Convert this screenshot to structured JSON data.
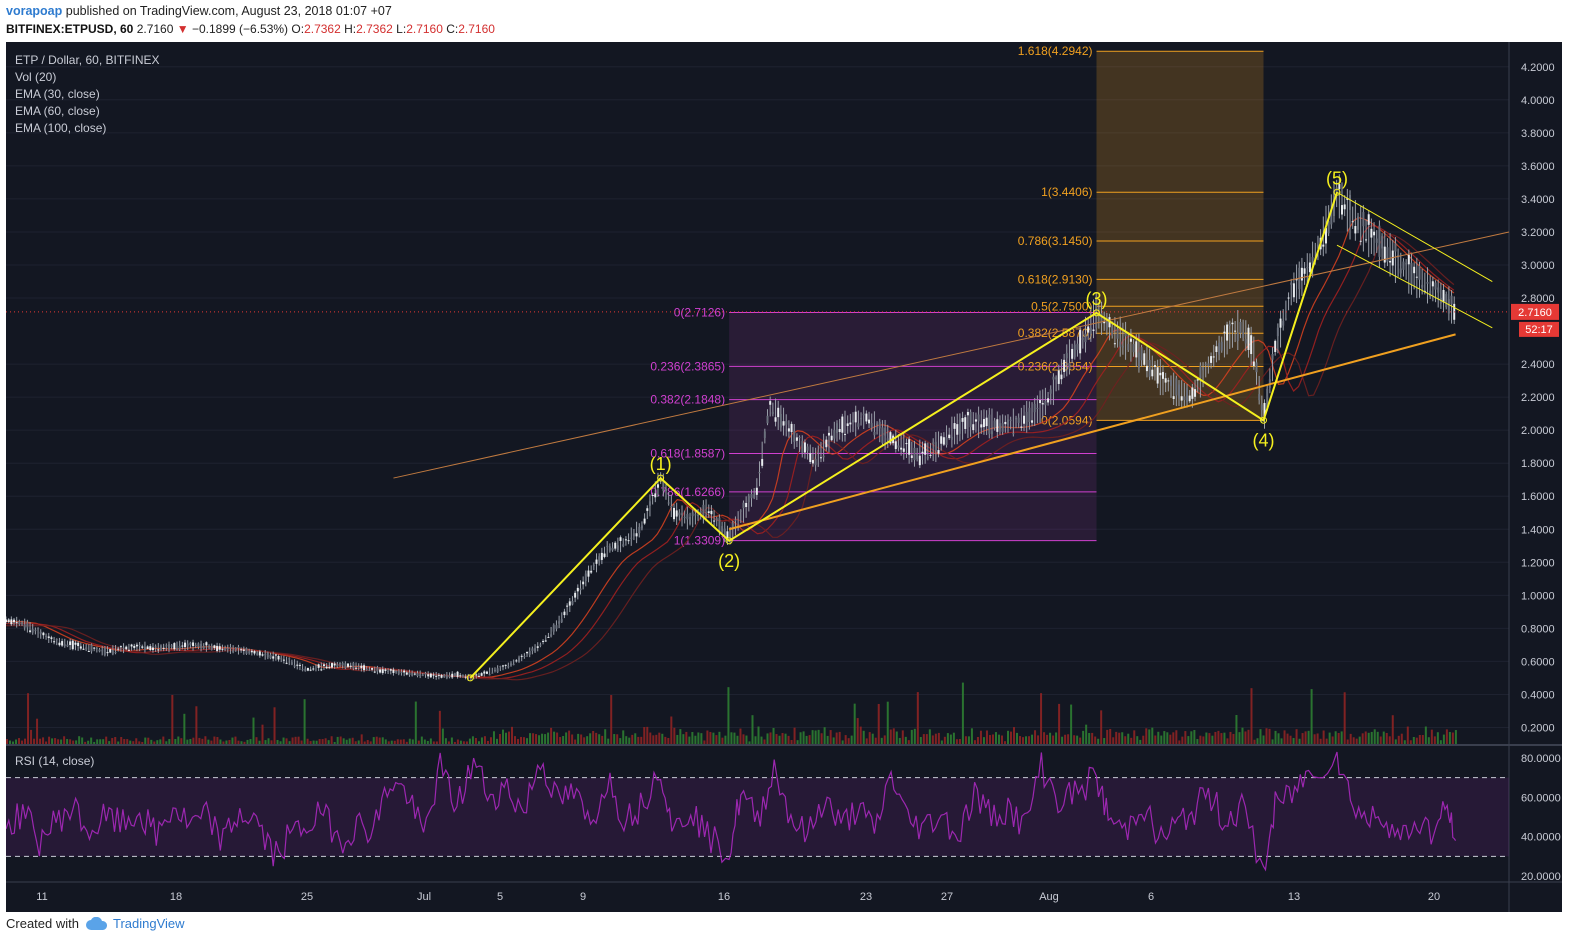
{
  "header": {
    "author": "vorapoap",
    "published_text": "published on TradingView.com, August 23, 2018 01:07 +07",
    "symbol": "BITFINEX:ETPUSD, 60",
    "last": "2.7160",
    "change": "−0.1899 (−6.53%)",
    "o_label": "O:",
    "o": "2.7362",
    "h_label": "H:",
    "h": "2.7362",
    "l_label": "L:",
    "l": "2.7160",
    "c_label": "C:",
    "c": "2.7160"
  },
  "legend": {
    "title": "ETP / Dollar, 60, BITFINEX",
    "vol": "Vol (20)",
    "ema30": "EMA (30, close)",
    "ema60": "EMA (60, close)",
    "ema100": "EMA (100, close)",
    "rsi": "RSI (14, close)"
  },
  "price_tag": "2.7160",
  "countdown": "52:17",
  "footer": {
    "created_with": "Created with",
    "brand": "TradingView"
  },
  "colors": {
    "background": "#131722",
    "wave_lines": "#f5f01e",
    "trendline": "#f0a020",
    "fib_orange": "#f0a020",
    "fib_magenta": "#d040d0",
    "rsi_line": "#9c27b0",
    "price_tag": "#e53935"
  },
  "chart_data": {
    "type": "line",
    "x_ticks": [
      "11",
      "18",
      "25",
      "Jul",
      "5",
      "9",
      "16",
      "23",
      "27",
      "Aug",
      "6",
      "13",
      "20"
    ],
    "price_axis": {
      "ticks": [
        "4.2000",
        "4.0000",
        "3.8000",
        "3.6000",
        "3.4000",
        "3.2000",
        "3.0000",
        "2.8000",
        "2.4000",
        "2.2000",
        "2.0000",
        "1.8000",
        "1.6000",
        "1.4000",
        "1.2000",
        "1.0000",
        "0.8000",
        "0.6000",
        "0.4000",
        "0.2000"
      ],
      "ylim": [
        0.1,
        4.35
      ]
    },
    "rsi_axis": {
      "ticks": [
        "80.0000",
        "60.0000",
        "40.0000",
        "20.0000"
      ],
      "ylim": [
        18,
        84
      ],
      "bands": [
        70,
        30
      ]
    },
    "wave_points": [
      {
        "label": "",
        "x": 27.8,
        "y": 0.5
      },
      {
        "label": "(1)",
        "x": 39.2,
        "y": 1.71
      },
      {
        "label": "(2)",
        "x": 43.3,
        "y": 1.33
      },
      {
        "label": "(3)",
        "x": 65.3,
        "y": 2.71
      },
      {
        "label": "(4)",
        "x": 75.3,
        "y": 2.06
      },
      {
        "label": "(5)",
        "x": 79.7,
        "y": 3.44
      }
    ],
    "fib_retracement_magenta": {
      "x_range": [
        43.3,
        65.3
      ],
      "levels": [
        {
          "label": "0(2.7126)",
          "value": 2.7126
        },
        {
          "label": "0.236(2.3865)",
          "value": 2.3865
        },
        {
          "label": "0.382(2.1848)",
          "value": 2.1848
        },
        {
          "label": "0.618(1.8587)",
          "value": 1.8587
        },
        {
          "label": "0.786(1.6266)",
          "value": 1.6266
        },
        {
          "label": "1(1.3309)",
          "value": 1.3309
        }
      ]
    },
    "fib_extension_orange": {
      "x_range": [
        65.3,
        75.3
      ],
      "levels": [
        {
          "label": "1.618(4.2942)",
          "value": 4.2942
        },
        {
          "label": "1(3.4406)",
          "value": 3.4406
        },
        {
          "label": "0.786(3.1450)",
          "value": 3.145
        },
        {
          "label": "0.618(2.9130)",
          "value": 2.913
        },
        {
          "label": "0.5(2.7500)",
          "value": 2.75
        },
        {
          "label": "0.382(2.5870)",
          "value": 2.587
        },
        {
          "label": "0.236(2.3854)",
          "value": 2.3854
        },
        {
          "label": "0(2.0594)",
          "value": 2.0594
        }
      ]
    },
    "price_series": [
      [
        0,
        0.85
      ],
      [
        1,
        0.83
      ],
      [
        2,
        0.77
      ],
      [
        3,
        0.72
      ],
      [
        4,
        0.7
      ],
      [
        5,
        0.68
      ],
      [
        6,
        0.66
      ],
      [
        7,
        0.68
      ],
      [
        8,
        0.69
      ],
      [
        9,
        0.68
      ],
      [
        10,
        0.69
      ],
      [
        11,
        0.7
      ],
      [
        12,
        0.69
      ],
      [
        13,
        0.68
      ],
      [
        14,
        0.67
      ],
      [
        15,
        0.65
      ],
      [
        16,
        0.63
      ],
      [
        17,
        0.6
      ],
      [
        18,
        0.55
      ],
      [
        19,
        0.57
      ],
      [
        20,
        0.58
      ],
      [
        21,
        0.57
      ],
      [
        22,
        0.55
      ],
      [
        23,
        0.54
      ],
      [
        24,
        0.53
      ],
      [
        25,
        0.52
      ],
      [
        26,
        0.51
      ],
      [
        27,
        0.52
      ],
      [
        27.8,
        0.5
      ],
      [
        29,
        0.54
      ],
      [
        30,
        0.57
      ],
      [
        31,
        0.63
      ],
      [
        32,
        0.7
      ],
      [
        33,
        0.82
      ],
      [
        34,
        0.98
      ],
      [
        35,
        1.15
      ],
      [
        36,
        1.28
      ],
      [
        37,
        1.32
      ],
      [
        38,
        1.4
      ],
      [
        39.2,
        1.71
      ],
      [
        40,
        1.5
      ],
      [
        41,
        1.46
      ],
      [
        42,
        1.52
      ],
      [
        43.3,
        1.35
      ],
      [
        44,
        1.48
      ],
      [
        45,
        1.65
      ],
      [
        45.7,
        2.15
      ],
      [
        46.5,
        2.06
      ],
      [
        47.5,
        1.92
      ],
      [
        48.5,
        1.82
      ],
      [
        49.5,
        1.98
      ],
      [
        50.5,
        2.04
      ],
      [
        51.5,
        2.08
      ],
      [
        52.5,
        1.98
      ],
      [
        53.5,
        1.92
      ],
      [
        54.5,
        1.85
      ],
      [
        55.5,
        1.88
      ],
      [
        56.5,
        1.98
      ],
      [
        57.5,
        2.04
      ],
      [
        58.5,
        2.05
      ],
      [
        59.5,
        2.03
      ],
      [
        60.5,
        2.05
      ],
      [
        61.5,
        2.1
      ],
      [
        62.5,
        2.2
      ],
      [
        63.5,
        2.42
      ],
      [
        64.5,
        2.55
      ],
      [
        65.3,
        2.71
      ],
      [
        66.3,
        2.6
      ],
      [
        67.3,
        2.52
      ],
      [
        68.3,
        2.42
      ],
      [
        69.3,
        2.3
      ],
      [
        70.3,
        2.22
      ],
      [
        71,
        2.2
      ],
      [
        71.8,
        2.36
      ],
      [
        72.5,
        2.48
      ],
      [
        73.3,
        2.58
      ],
      [
        74,
        2.62
      ],
      [
        74.7,
        2.48
      ],
      [
        75.3,
        2.06
      ],
      [
        76,
        2.5
      ],
      [
        77,
        2.85
      ],
      [
        78,
        2.98
      ],
      [
        79,
        3.2
      ],
      [
        79.7,
        3.44
      ],
      [
        80.5,
        3.3
      ],
      [
        81.5,
        3.2
      ],
      [
        82.5,
        3.1
      ],
      [
        83.5,
        3.0
      ],
      [
        84.5,
        2.92
      ],
      [
        85.5,
        2.85
      ],
      [
        86.3,
        2.78
      ],
      [
        86.8,
        2.716
      ]
    ],
    "trendlines": [
      {
        "name": "orange",
        "from": [
          43.3,
          1.4
        ],
        "to": [
          86.8,
          2.58
        ]
      },
      {
        "name": "thin-brown",
        "from": [
          23.2,
          1.71
        ],
        "to": [
          90.0,
          3.2
        ]
      },
      {
        "name": "channel-top",
        "from": [
          79.7,
          3.44
        ],
        "to": [
          89.0,
          2.9
        ]
      },
      {
        "name": "channel-bottom",
        "from": [
          79.7,
          3.12
        ],
        "to": [
          89.0,
          2.62
        ]
      }
    ],
    "rsi_series": [
      [
        0,
        45
      ],
      [
        1,
        52
      ],
      [
        2,
        38
      ],
      [
        3,
        48
      ],
      [
        4,
        55
      ],
      [
        5,
        42
      ],
      [
        6,
        50
      ],
      [
        7,
        46
      ],
      [
        8,
        52
      ],
      [
        9,
        40
      ],
      [
        10,
        55
      ],
      [
        11,
        45
      ],
      [
        12,
        50
      ],
      [
        13,
        38
      ],
      [
        14,
        52
      ],
      [
        15,
        48
      ],
      [
        16,
        30
      ],
      [
        17,
        40
      ],
      [
        18,
        46
      ],
      [
        19,
        52
      ],
      [
        20,
        38
      ],
      [
        21,
        46
      ],
      [
        22,
        44
      ],
      [
        23,
        68
      ],
      [
        24,
        62
      ],
      [
        25,
        40
      ],
      [
        26,
        75
      ],
      [
        27,
        55
      ],
      [
        28,
        78
      ],
      [
        29,
        60
      ],
      [
        30,
        65
      ],
      [
        31,
        52
      ],
      [
        32,
        80
      ],
      [
        33,
        58
      ],
      [
        34,
        62
      ],
      [
        35,
        45
      ],
      [
        36,
        70
      ],
      [
        37,
        50
      ],
      [
        38,
        55
      ],
      [
        39.2,
        76
      ],
      [
        40,
        42
      ],
      [
        41,
        55
      ],
      [
        42,
        40
      ],
      [
        43.3,
        32
      ],
      [
        44,
        62
      ],
      [
        45,
        48
      ],
      [
        46,
        75
      ],
      [
        47,
        50
      ],
      [
        48,
        40
      ],
      [
        49,
        60
      ],
      [
        50,
        45
      ],
      [
        51,
        55
      ],
      [
        52,
        42
      ],
      [
        53,
        72
      ],
      [
        54,
        48
      ],
      [
        55,
        45
      ],
      [
        56,
        52
      ],
      [
        57,
        40
      ],
      [
        58,
        62
      ],
      [
        59,
        50
      ],
      [
        60,
        55
      ],
      [
        61,
        45
      ],
      [
        62,
        76
      ],
      [
        63,
        58
      ],
      [
        64,
        62
      ],
      [
        65.3,
        70
      ],
      [
        66,
        50
      ],
      [
        67,
        42
      ],
      [
        68,
        58
      ],
      [
        69,
        38
      ],
      [
        70,
        45
      ],
      [
        71,
        52
      ],
      [
        72,
        62
      ],
      [
        73,
        48
      ],
      [
        74,
        55
      ],
      [
        75.3,
        22
      ],
      [
        76,
        55
      ],
      [
        77,
        62
      ],
      [
        78,
        72
      ],
      [
        79.7,
        82
      ],
      [
        80.5,
        60
      ],
      [
        81.5,
        48
      ],
      [
        82.5,
        52
      ],
      [
        83.5,
        38
      ],
      [
        84.5,
        48
      ],
      [
        85.5,
        42
      ],
      [
        86.3,
        55
      ],
      [
        86.8,
        38
      ]
    ]
  }
}
